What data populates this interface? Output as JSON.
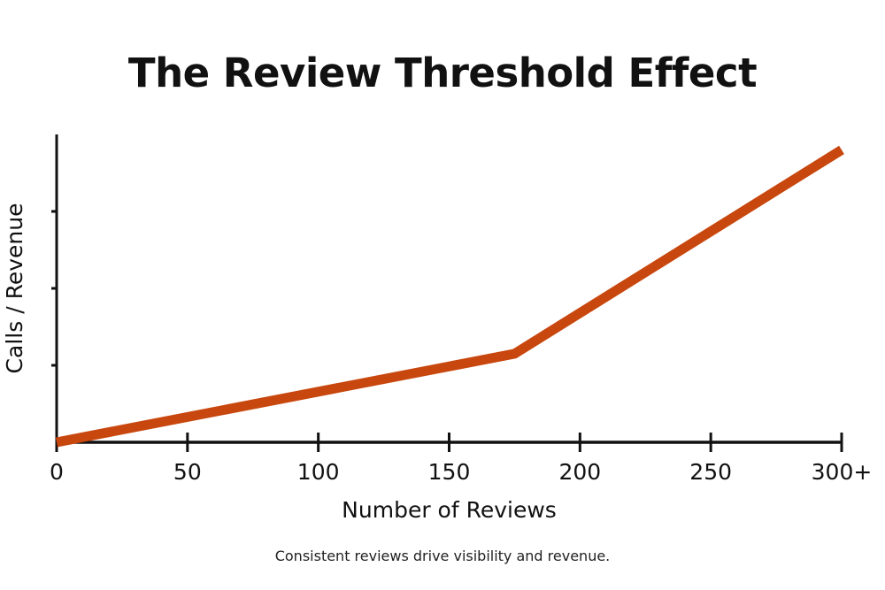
{
  "chart_data": {
    "type": "line",
    "title": "The Review Threshold Effect",
    "xlabel": "Number of Reviews",
    "ylabel": "Calls / Revenue",
    "caption": "Consistent reviews drive visibility and revenue.",
    "x_ticks": [
      0,
      50,
      100,
      150,
      200,
      250,
      300
    ],
    "x_tick_labels": [
      "0",
      "50",
      "100",
      "150",
      "200",
      "250",
      "300+"
    ],
    "y_ticks": [
      1,
      2,
      3
    ],
    "y_tick_labels": [],
    "xlim": [
      0,
      300
    ],
    "ylim": [
      0,
      4
    ],
    "grid": false,
    "series": [
      {
        "x": [
          0,
          175,
          300
        ],
        "y": [
          0,
          1.15,
          3.8
        ],
        "color": "#C8470E"
      }
    ]
  }
}
